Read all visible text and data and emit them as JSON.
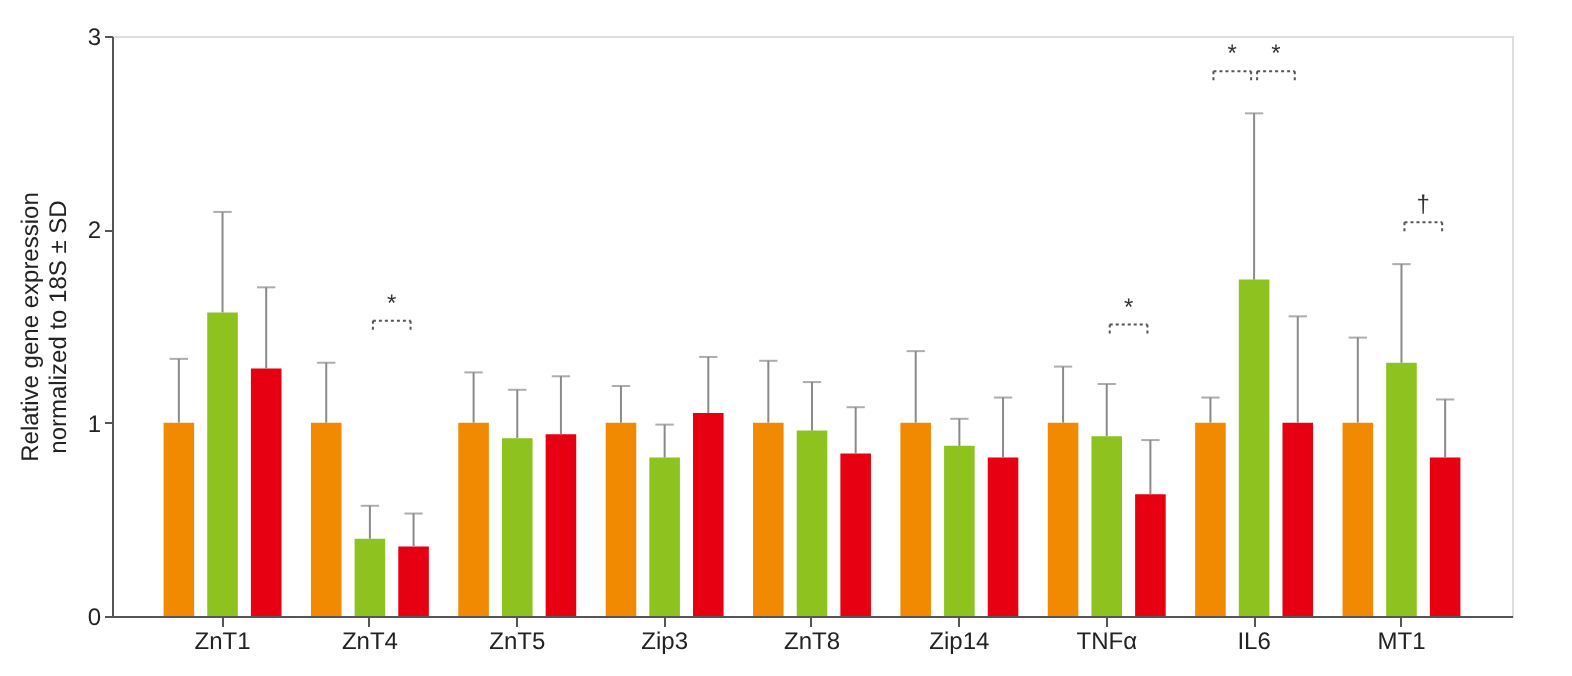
{
  "chart_data": {
    "type": "bar",
    "ylabel": "Relative gene expression\nnormalized to 18S ± SD",
    "categories": [
      "ZnT1",
      "ZnT4",
      "ZnT5",
      "Zip3",
      "ZnT8",
      "Zip14",
      "TNFα",
      "IL6",
      "MT1"
    ],
    "series": [
      {
        "color": "#f18a00",
        "values": [
          1,
          1,
          1,
          1,
          1,
          1,
          1,
          1,
          1
        ],
        "errors": [
          [
            1,
            1.33
          ],
          [
            1,
            1.31
          ],
          [
            1,
            1.26
          ],
          [
            1,
            1.19
          ],
          [
            1,
            1.32
          ],
          [
            1,
            1.37
          ],
          [
            1,
            1.29
          ],
          [
            1,
            1.13
          ],
          [
            1,
            1.44
          ]
        ]
      },
      {
        "color": "#8dc21f",
        "values": [
          1.57,
          0.4,
          0.92,
          0.82,
          0.96,
          0.88,
          0.93,
          1.74,
          1.31
        ],
        "errors": [
          [
            1.57,
            2.09
          ],
          [
            0.4,
            0.57
          ],
          [
            0.92,
            1.17
          ],
          [
            0.82,
            0.99
          ],
          [
            0.96,
            1.21
          ],
          [
            0.88,
            1.02
          ],
          [
            0.93,
            1.2
          ],
          [
            1.74,
            2.6
          ],
          [
            1.31,
            1.82
          ]
        ]
      },
      {
        "color": "#e60012",
        "values": [
          1.28,
          0.36,
          0.94,
          1.05,
          0.84,
          0.82,
          0.63,
          1.0,
          0.82
        ],
        "errors": [
          [
            1.28,
            1.7
          ],
          [
            0.36,
            0.53
          ],
          [
            0.94,
            1.24
          ],
          [
            1.05,
            1.34
          ],
          [
            0.84,
            1.08
          ],
          [
            0.82,
            1.13
          ],
          [
            0.63,
            0.91
          ],
          [
            1.0,
            1.55
          ],
          [
            0.82,
            1.12
          ]
        ]
      }
    ],
    "ylim": [
      0,
      3
    ],
    "yticks": [
      0,
      1,
      2,
      3
    ],
    "grid": false,
    "legend": false,
    "annotations": [
      "*",
      "*",
      "*",
      "*",
      "†"
    ]
  }
}
